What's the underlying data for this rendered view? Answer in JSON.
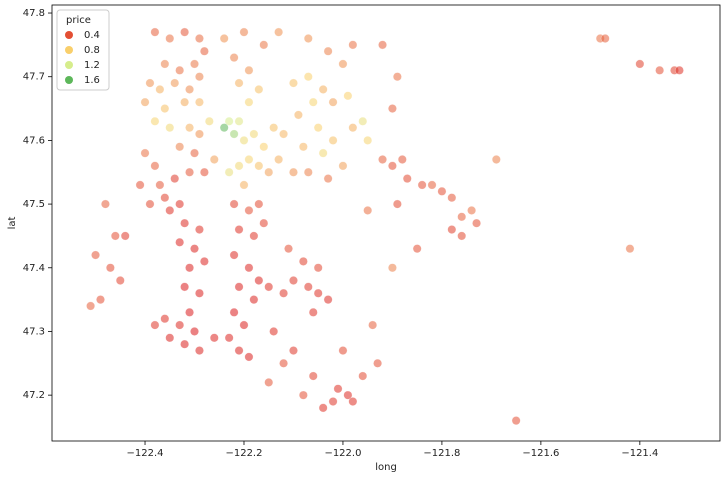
{
  "chart_data": {
    "type": "scatter",
    "xlabel": "long",
    "ylabel": "lat",
    "hue_title": "price",
    "legend_corner": "upper left",
    "legend": [
      {
        "value": 0.4,
        "color": "#e34f33"
      },
      {
        "value": 0.8,
        "color": "#f9cf6b"
      },
      {
        "value": 1.2,
        "color": "#d6ed8c"
      },
      {
        "value": 1.6,
        "color": "#5db75a"
      }
    ],
    "xlim": [
      -122.588,
      -121.238
    ],
    "ylim": [
      47.128,
      47.8126
    ],
    "xticks": [
      {
        "value": -122.4,
        "label": "−122.4"
      },
      {
        "value": -122.2,
        "label": "−122.2"
      },
      {
        "value": -122.0,
        "label": "−122.0"
      },
      {
        "value": -121.8,
        "label": "−121.8"
      },
      {
        "value": -121.6,
        "label": "−121.6"
      },
      {
        "value": -121.4,
        "label": "−121.4"
      }
    ],
    "yticks": [
      47.2,
      47.3,
      47.4,
      47.5,
      47.6,
      47.7,
      47.8
    ],
    "x": [
      -122.38,
      -122.35,
      -122.32,
      -122.29,
      -122.36,
      -122.33,
      -122.3,
      -122.28,
      -122.39,
      -122.37,
      -122.34,
      -122.31,
      -122.29,
      -122.4,
      -122.36,
      -122.32,
      -122.29,
      -122.38,
      -122.35,
      -122.31,
      -122.29,
      -122.33,
      -122.3,
      -122.28,
      -122.31,
      -122.4,
      -122.38,
      -122.41,
      -122.37,
      -122.39,
      -122.36,
      -122.34,
      -122.35,
      -122.33,
      -122.32,
      -122.29,
      -122.33,
      -122.3,
      -122.31,
      -122.28,
      -122.32,
      -122.29,
      -122.31,
      -122.33,
      -122.36,
      -122.38,
      -122.35,
      -122.32,
      -122.29,
      -122.3,
      -122.26,
      -122.22,
      -122.19,
      -122.17,
      -122.21,
      -122.18,
      -122.16,
      -122.22,
      -122.19,
      -122.17,
      -122.21,
      -122.18,
      -122.22,
      -122.2,
      -122.23,
      -122.21,
      -122.19,
      -122.15,
      -122.12,
      -122.1,
      -122.07,
      -122.05,
      -122.03,
      -122.06,
      -122.08,
      -122.05,
      -122.11,
      -122.14,
      -122.1,
      -122.23,
      -122.22,
      -122.24,
      -122.21,
      -122.2,
      -122.18,
      -122.16,
      -122.19,
      -122.17,
      -122.21,
      -122.23,
      -122.2,
      -122.15,
      -122.13,
      -122.14,
      -122.12,
      -122.19,
      -122.17,
      -122.21,
      -122.19,
      -122.22,
      -122.24,
      -122.2,
      -122.16,
      -122.13,
      -122.27,
      -122.26,
      -122.1,
      -122.07,
      -122.04,
      -122.02,
      -122.06,
      -122.09,
      -122.05,
      -122.02,
      -122.04,
      -122.08,
      -122.1,
      -122.07,
      -122.03,
      -122.0,
      -121.98,
      -121.99,
      -122.0,
      -122.03,
      -122.07,
      -121.98,
      -121.96,
      -121.95,
      -121.92,
      -121.9,
      -121.88,
      -121.87,
      -121.84,
      -121.82,
      -121.8,
      -121.78,
      -121.76,
      -121.78,
      -121.76,
      -121.73,
      -121.74,
      -121.9,
      -121.89,
      -121.92,
      -121.95,
      -121.9,
      -121.94,
      -121.93,
      -122.01,
      -121.99,
      -121.98,
      -122.02,
      -122.06,
      -122.04,
      -122.48,
      -122.46,
      -122.5,
      -122.47,
      -122.45,
      -122.49,
      -122.51,
      -122.44,
      -122.12,
      -122.15,
      -122.08,
      -122.0,
      -121.96,
      -121.69,
      -121.65,
      -121.48,
      -121.47,
      -121.42,
      -121.4,
      -121.36,
      -121.33,
      -121.32,
      -121.89,
      -121.85
    ],
    "values": [
      47.77,
      47.76,
      47.77,
      47.76,
      47.72,
      47.71,
      47.72,
      47.74,
      47.69,
      47.68,
      47.69,
      47.68,
      47.7,
      47.66,
      47.65,
      47.66,
      47.66,
      47.63,
      47.62,
      47.62,
      47.61,
      47.59,
      47.58,
      47.55,
      47.55,
      47.58,
      47.56,
      47.53,
      47.53,
      47.5,
      47.51,
      47.54,
      47.49,
      47.5,
      47.47,
      47.46,
      47.44,
      47.43,
      47.4,
      47.41,
      47.37,
      47.36,
      47.33,
      47.31,
      47.32,
      47.31,
      47.29,
      47.28,
      47.27,
      47.3,
      47.29,
      47.5,
      47.49,
      47.5,
      47.46,
      47.45,
      47.47,
      47.42,
      47.4,
      47.38,
      47.37,
      47.35,
      47.33,
      47.31,
      47.29,
      47.27,
      47.26,
      47.37,
      47.36,
      47.38,
      47.37,
      47.36,
      47.35,
      47.33,
      47.41,
      47.4,
      47.43,
      47.3,
      47.27,
      47.63,
      47.61,
      47.62,
      47.63,
      47.6,
      47.61,
      47.59,
      47.57,
      47.56,
      47.56,
      47.55,
      47.53,
      47.55,
      47.57,
      47.62,
      47.61,
      47.66,
      47.68,
      47.69,
      47.71,
      47.73,
      47.76,
      47.77,
      47.75,
      47.77,
      47.63,
      47.57,
      47.69,
      47.7,
      47.68,
      47.66,
      47.66,
      47.64,
      47.62,
      47.6,
      47.58,
      47.59,
      47.55,
      47.55,
      47.54,
      47.56,
      47.62,
      47.67,
      47.72,
      47.74,
      47.76,
      47.75,
      47.63,
      47.6,
      47.57,
      47.56,
      47.57,
      47.54,
      47.53,
      47.53,
      47.52,
      47.51,
      47.48,
      47.46,
      47.45,
      47.47,
      47.49,
      47.65,
      47.7,
      47.75,
      47.49,
      47.4,
      47.31,
      47.25,
      47.21,
      47.2,
      47.19,
      47.19,
      47.23,
      47.18,
      47.5,
      47.45,
      47.42,
      47.4,
      47.38,
      47.35,
      47.34,
      47.45,
      47.25,
      47.22,
      47.2,
      47.27,
      47.23,
      47.57,
      47.16,
      47.76,
      47.76,
      47.43,
      47.72,
      47.71,
      47.71,
      47.71,
      47.5,
      47.43
    ],
    "hue": [
      0.45,
      0.5,
      0.42,
      0.48,
      0.55,
      0.5,
      0.52,
      0.45,
      0.6,
      0.7,
      0.62,
      0.58,
      0.55,
      0.65,
      0.75,
      0.68,
      0.72,
      0.85,
      0.9,
      0.7,
      0.6,
      0.55,
      0.45,
      0.4,
      0.42,
      0.5,
      0.45,
      0.4,
      0.42,
      0.38,
      0.35,
      0.33,
      0.3,
      0.3,
      0.28,
      0.3,
      0.27,
      0.26,
      0.25,
      0.27,
      0.24,
      0.25,
      0.24,
      0.28,
      0.3,
      0.32,
      0.26,
      0.25,
      0.26,
      0.23,
      0.27,
      0.35,
      0.4,
      0.38,
      0.3,
      0.32,
      0.36,
      0.28,
      0.27,
      0.26,
      0.25,
      0.26,
      0.24,
      0.25,
      0.27,
      0.26,
      0.25,
      0.3,
      0.32,
      0.33,
      0.32,
      0.3,
      0.29,
      0.31,
      0.35,
      0.37,
      0.4,
      0.3,
      0.32,
      1.2,
      1.4,
      1.6,
      1.1,
      0.95,
      0.9,
      0.8,
      0.85,
      0.75,
      0.9,
      1.0,
      0.7,
      0.65,
      0.7,
      0.75,
      0.72,
      0.85,
      0.75,
      0.7,
      0.6,
      0.55,
      0.6,
      0.55,
      0.52,
      0.6,
      0.9,
      0.65,
      0.75,
      0.8,
      0.7,
      0.65,
      0.85,
      0.7,
      0.8,
      0.75,
      0.9,
      0.72,
      0.6,
      0.55,
      0.5,
      0.65,
      0.7,
      0.8,
      0.6,
      0.55,
      0.6,
      0.5,
      1.0,
      0.85,
      0.45,
      0.4,
      0.42,
      0.38,
      0.4,
      0.45,
      0.4,
      0.42,
      0.45,
      0.35,
      0.38,
      0.4,
      0.5,
      0.45,
      0.5,
      0.45,
      0.5,
      0.55,
      0.45,
      0.4,
      0.3,
      0.28,
      0.3,
      0.32,
      0.35,
      0.3,
      0.45,
      0.4,
      0.42,
      0.38,
      0.36,
      0.4,
      0.45,
      0.33,
      0.4,
      0.42,
      0.4,
      0.38,
      0.38,
      0.55,
      0.4,
      0.5,
      0.45,
      0.5,
      0.35,
      0.4,
      0.35,
      0.3,
      0.38,
      0.4
    ]
  }
}
